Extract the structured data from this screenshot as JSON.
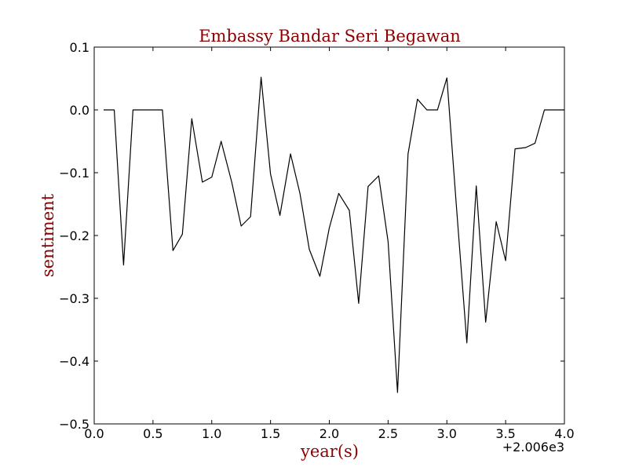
{
  "chart_data": {
    "type": "line",
    "title": "Embassy Bandar Seri Begawan",
    "xlabel": "year(s)",
    "ylabel": "sentiment",
    "x_offset_label": "+2.006e3",
    "xlim": [
      0.0,
      4.0
    ],
    "ylim": [
      -0.5,
      0.1
    ],
    "x_ticks": [
      "0.0",
      "0.5",
      "1.0",
      "1.5",
      "2.0",
      "2.5",
      "3.0",
      "3.5",
      "4.0"
    ],
    "y_ticks": [
      "0.1",
      "0.0",
      "−0.1",
      "−0.2",
      "−0.3",
      "−0.4",
      "−0.5"
    ],
    "x_tick_values": [
      0.0,
      0.5,
      1.0,
      1.5,
      2.0,
      2.5,
      3.0,
      3.5,
      4.0
    ],
    "y_tick_values": [
      0.1,
      0.0,
      -0.1,
      -0.2,
      -0.3,
      -0.4,
      -0.5
    ],
    "grid": false,
    "line_color": "#000000",
    "label_color": "#8b0000",
    "series": [
      {
        "x": [
          0.08,
          0.17,
          0.25,
          0.33,
          0.42,
          0.5,
          0.58,
          0.67,
          0.75,
          0.83,
          0.92,
          1.0,
          1.08,
          1.17,
          1.25,
          1.33,
          1.42,
          1.5,
          1.58,
          1.67,
          1.75,
          1.83,
          1.92,
          2.0,
          2.08,
          2.17,
          2.25,
          2.33,
          2.42,
          2.5,
          2.58,
          2.67,
          2.75,
          2.83,
          2.92,
          3.0,
          3.08,
          3.17,
          3.25,
          3.33,
          3.42,
          3.5,
          3.58,
          3.67,
          3.75,
          3.83,
          3.92,
          4.0
        ],
        "y": [
          0.0,
          0.0,
          -0.247,
          0.0,
          0.0,
          0.0,
          0.0,
          -0.224,
          -0.198,
          -0.014,
          -0.115,
          -0.107,
          -0.05,
          -0.115,
          -0.185,
          -0.17,
          0.052,
          -0.102,
          -0.168,
          -0.07,
          -0.133,
          -0.222,
          -0.265,
          -0.188,
          -0.133,
          -0.16,
          -0.308,
          -0.122,
          -0.105,
          -0.21,
          -0.45,
          -0.07,
          0.017,
          0.0,
          0.0,
          0.051,
          -0.15,
          -0.371,
          -0.121,
          -0.338,
          -0.178,
          -0.24,
          -0.062,
          -0.06,
          -0.053,
          0.0,
          0.0,
          0.0
        ]
      }
    ]
  }
}
